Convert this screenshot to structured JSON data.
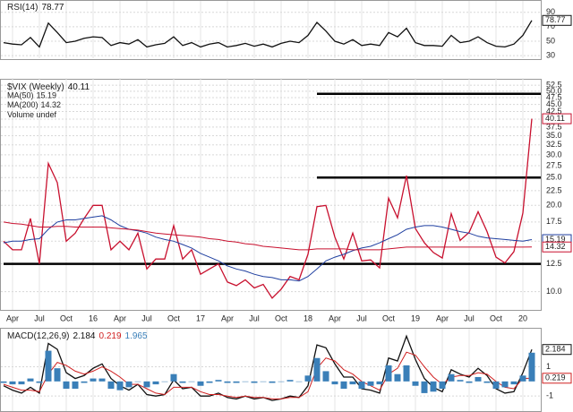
{
  "chart_data": [
    {
      "type": "line",
      "title": "RSI(14)",
      "legend_layout": "inline",
      "ylim": [
        27.6,
        99.6
      ],
      "yticks": [
        90,
        70,
        50,
        30
      ],
      "grid": true,
      "series": [
        {
          "name": null,
          "color": "#111111",
          "values": [
            48,
            46,
            45,
            55,
            42,
            75,
            62,
            48,
            50,
            54,
            56,
            55,
            44,
            48,
            46,
            52,
            42,
            45,
            47,
            56,
            44,
            48,
            42,
            46,
            48,
            42,
            44,
            47,
            43,
            46,
            42,
            47,
            50,
            48,
            58,
            76,
            64,
            50,
            46,
            52,
            44,
            46,
            44,
            62,
            56,
            68,
            48,
            44,
            44,
            43,
            58,
            48,
            50,
            56,
            48,
            43,
            42,
            46,
            58,
            78.77
          ]
        }
      ]
    },
    {
      "type": "line",
      "title": "$VIX (Weekly)",
      "legend_layout": "stacked",
      "log_scale": true,
      "volume_label": "Volume undef",
      "categories": [
        null,
        "Apr",
        null,
        null,
        "Jul",
        null,
        null,
        "Oct",
        null,
        null,
        "16",
        null,
        null,
        "Apr",
        null,
        null,
        "Jul",
        null,
        null,
        "Oct",
        null,
        null,
        "17",
        null,
        null,
        "Apr",
        null,
        null,
        "Jul",
        null,
        null,
        "Oct",
        null,
        null,
        "18",
        null,
        null,
        "Apr",
        null,
        null,
        "Jul",
        null,
        null,
        "Oct",
        null,
        null,
        "19",
        null,
        null,
        "Apr",
        null,
        null,
        "Jul",
        null,
        null,
        "Oct",
        null,
        null,
        "20",
        null
      ],
      "ylim": [
        8.7,
        53.7
      ],
      "yticks": [
        52.5,
        {
          "value": 50,
          "label": "50.0"
        },
        47.5,
        {
          "value": 45,
          "label": "45.0"
        },
        42.5,
        {
          "value": 40,
          "label": "40.0"
        },
        37.5,
        {
          "value": 35,
          "label": "35.0"
        },
        32.5,
        {
          "value": 30,
          "label": "30.0"
        },
        27.5,
        {
          "value": 25,
          "label": "25.0"
        },
        22.5,
        {
          "value": 20,
          "label": "20.0"
        },
        17.5,
        {
          "value": 15,
          "label": "15.0"
        },
        12.5,
        {
          "value": 10,
          "label": "10.0"
        }
      ],
      "grid": true,
      "hlines": [
        {
          "value": 12.5,
          "from": 0
        },
        {
          "value": 25,
          "from": 35
        },
        {
          "value": 49,
          "from": 35
        }
      ],
      "series": [
        {
          "name": null,
          "color": "#c8102e",
          "values": [
            15,
            14,
            14,
            18,
            12.5,
            28,
            24,
            15,
            16,
            18,
            20,
            20,
            14,
            15,
            14,
            16,
            12,
            13,
            13,
            17,
            13,
            14,
            11.5,
            12,
            12.5,
            10.8,
            10.5,
            11,
            10.3,
            10.6,
            9.5,
            10.2,
            11.3,
            11,
            13.5,
            19.8,
            20,
            15.5,
            13,
            16,
            12.8,
            12.9,
            12.1,
            21.2,
            18.1,
            25.4,
            16.6,
            14.8,
            13.7,
            13.1,
            18.7,
            15.1,
            16.1,
            19,
            16.2,
            13.2,
            12.6,
            13.8,
            18.8,
            40.11
          ]
        },
        {
          "name": "MA(50)",
          "color": "#1f3fa0",
          "values": [
            14.8,
            15,
            15,
            15.2,
            15.3,
            16.5,
            17.5,
            17.8,
            17.8,
            18,
            18.2,
            18.4,
            17.8,
            17,
            16.5,
            16.3,
            16,
            15.5,
            15.2,
            15,
            14.6,
            14.2,
            13.6,
            13.2,
            12.8,
            12.3,
            12,
            11.8,
            11.5,
            11.3,
            11.2,
            11,
            11,
            10.9,
            11.3,
            12,
            12.8,
            13.2,
            13.5,
            13.9,
            14.2,
            14.4,
            14.8,
            15.3,
            15.8,
            16.5,
            16.8,
            17,
            17,
            16.8,
            16.5,
            16.2,
            16,
            15.6,
            15.4,
            15.3,
            15.2,
            15.1,
            15,
            15.19
          ]
        },
        {
          "name": "MA(200)",
          "color": "#c8102e",
          "values": [
            17.5,
            17.3,
            17.2,
            17,
            16.8,
            16.8,
            16.9,
            16.9,
            16.8,
            16.8,
            16.8,
            16.8,
            16.7,
            16.6,
            16.5,
            16.4,
            16.2,
            16,
            15.9,
            15.8,
            15.7,
            15.6,
            15.5,
            15.3,
            15.2,
            15,
            14.9,
            14.7,
            14.6,
            14.4,
            14.3,
            14.2,
            14.1,
            14,
            14,
            14.1,
            14.1,
            14.1,
            14.1,
            14,
            14,
            14,
            14,
            14.1,
            14.2,
            14.3,
            14.3,
            14.3,
            14.3,
            14.3,
            14.3,
            14.3,
            14.3,
            14.3,
            14.3,
            14.3,
            14.3,
            14.3,
            14.3,
            14.32
          ]
        }
      ]
    },
    {
      "type": "line",
      "title": "MACD(12,26,9)",
      "legend_layout": "inline",
      "ylim": [
        -1.97,
        3.3
      ],
      "yticks": [
        1,
        -1
      ],
      "grid": true,
      "series": [
        {
          "name": null,
          "color": "#111111",
          "values": [
            -0.3,
            -0.6,
            -0.8,
            -0.4,
            -0.8,
            2.6,
            2.2,
            0.6,
            0.2,
            0.4,
            0.9,
            1.2,
            0.2,
            -0.3,
            -0.6,
            -0.2,
            -0.9,
            -1,
            -0.9,
            0.1,
            -0.5,
            -0.4,
            -1,
            -1,
            -0.8,
            -1.1,
            -1.2,
            -1,
            -1.2,
            -1.1,
            -1.3,
            -1.2,
            -1,
            -1.1,
            -0.3,
            2.5,
            2.3,
            1.2,
            0.3,
            0.3,
            -0.5,
            -0.6,
            -0.8,
            1.6,
            1.4,
            3.1,
            1.5,
            0.2,
            -0.4,
            -0.7,
            0.8,
            0.5,
            0.3,
            0.9,
            0.4,
            -0.5,
            -0.8,
            -0.7,
            0.6,
            2.184
          ]
        },
        {
          "name": null,
          "color": "#d02020",
          "values": [
            -0.2,
            -0.4,
            -0.6,
            -0.6,
            -0.7,
            0.5,
            1.3,
            1.1,
            0.7,
            0.5,
            0.7,
            1,
            0.7,
            0.3,
            -0.2,
            -0.2,
            -0.5,
            -0.8,
            -0.9,
            -0.4,
            -0.4,
            -0.4,
            -0.7,
            -0.9,
            -0.9,
            -1,
            -1.1,
            -1,
            -1.1,
            -1.1,
            -1.2,
            -1.2,
            -1.1,
            -1.1,
            -0.7,
            0.9,
            1.6,
            1.4,
            0.8,
            0.5,
            0,
            -0.3,
            -0.6,
            0.5,
            0.9,
            2,
            1.8,
            1,
            0.3,
            -0.2,
            0.3,
            0.4,
            0.4,
            0.6,
            0.5,
            0,
            -0.4,
            -0.5,
            0.2,
            0.219
          ]
        },
        {
          "name": null,
          "color": "#3a7fb8",
          "type": "bar",
          "values": [
            -0.1,
            -0.2,
            -0.2,
            0.2,
            -0.1,
            2.1,
            0.9,
            -0.5,
            -0.5,
            -0.1,
            0.2,
            0.2,
            -0.5,
            -0.6,
            -0.4,
            0,
            -0.4,
            -0.2,
            0,
            0.5,
            -0.1,
            0,
            -0.3,
            -0.1,
            0.1,
            -0.1,
            -0.1,
            0,
            -0.1,
            0,
            -0.1,
            0,
            0.1,
            0,
            0.4,
            1.6,
            0.7,
            -0.2,
            -0.5,
            -0.2,
            -0.5,
            -0.3,
            -0.2,
            1.1,
            0.5,
            1.1,
            -0.3,
            -0.8,
            -0.7,
            -0.5,
            0.5,
            0.1,
            -0.1,
            0.3,
            -0.1,
            -0.5,
            -0.4,
            -0.2,
            0.4,
            1.965
          ]
        }
      ]
    }
  ]
}
